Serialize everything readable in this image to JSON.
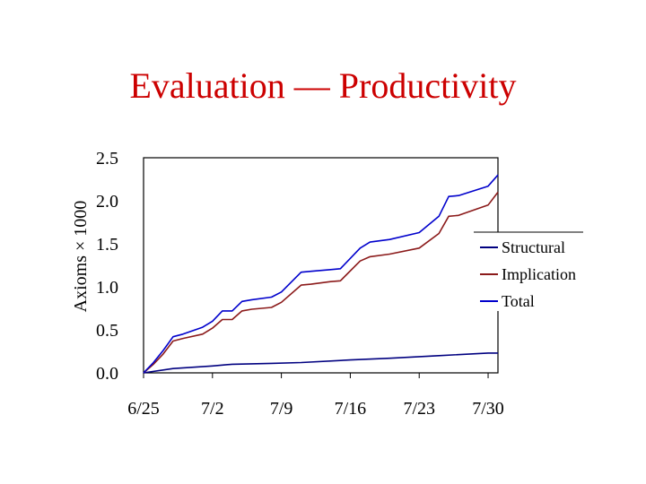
{
  "slide": {
    "title": "Evaluation — Productivity"
  },
  "chart_data": {
    "type": "line",
    "title": "",
    "xlabel": "",
    "ylabel": "Axioms × 1000",
    "ylim": [
      0,
      2.5
    ],
    "yticks": [
      "0.0",
      "0.5",
      "1.0",
      "1.5",
      "2.0",
      "2.5"
    ],
    "xticks": [
      "6/25",
      "7/2",
      "7/9",
      "7/16",
      "7/23",
      "7/30"
    ],
    "xlim": [
      "2002-06-25",
      "2002-07-31"
    ],
    "grid": false,
    "legend_position": "right",
    "series": [
      {
        "name": "Structural",
        "color": "#000080",
        "points": [
          [
            "2002-06-25",
            0.0
          ],
          [
            "2002-06-28",
            0.05
          ],
          [
            "2002-07-02",
            0.08
          ],
          [
            "2002-07-04",
            0.1
          ],
          [
            "2002-07-08",
            0.11
          ],
          [
            "2002-07-11",
            0.12
          ],
          [
            "2002-07-16",
            0.15
          ],
          [
            "2002-07-20",
            0.17
          ],
          [
            "2002-07-25",
            0.2
          ],
          [
            "2002-07-30",
            0.23
          ],
          [
            "2002-07-31",
            0.23
          ]
        ]
      },
      {
        "name": "Implication",
        "color": "#8b1a1a",
        "points": [
          [
            "2002-06-25",
            0.0
          ],
          [
            "2002-06-26",
            0.1
          ],
          [
            "2002-06-27",
            0.22
          ],
          [
            "2002-06-28",
            0.37
          ],
          [
            "2002-06-29",
            0.4
          ],
          [
            "2002-07-01",
            0.45
          ],
          [
            "2002-07-02",
            0.52
          ],
          [
            "2002-07-03",
            0.62
          ],
          [
            "2002-07-04",
            0.62
          ],
          [
            "2002-07-05",
            0.72
          ],
          [
            "2002-07-06",
            0.74
          ],
          [
            "2002-07-08",
            0.76
          ],
          [
            "2002-07-09",
            0.82
          ],
          [
            "2002-07-11",
            1.02
          ],
          [
            "2002-07-12",
            1.03
          ],
          [
            "2002-07-14",
            1.06
          ],
          [
            "2002-07-15",
            1.07
          ],
          [
            "2002-07-17",
            1.3
          ],
          [
            "2002-07-18",
            1.35
          ],
          [
            "2002-07-20",
            1.38
          ],
          [
            "2002-07-23",
            1.45
          ],
          [
            "2002-07-25",
            1.62
          ],
          [
            "2002-07-26",
            1.82
          ],
          [
            "2002-07-27",
            1.83
          ],
          [
            "2002-07-30",
            1.95
          ],
          [
            "2002-07-31",
            2.1
          ]
        ]
      },
      {
        "name": "Total",
        "color": "#0000cc",
        "points": [
          [
            "2002-06-25",
            0.0
          ],
          [
            "2002-06-26",
            0.12
          ],
          [
            "2002-06-27",
            0.26
          ],
          [
            "2002-06-28",
            0.42
          ],
          [
            "2002-06-29",
            0.45
          ],
          [
            "2002-07-01",
            0.53
          ],
          [
            "2002-07-02",
            0.6
          ],
          [
            "2002-07-03",
            0.72
          ],
          [
            "2002-07-04",
            0.72
          ],
          [
            "2002-07-05",
            0.83
          ],
          [
            "2002-07-06",
            0.85
          ],
          [
            "2002-07-08",
            0.88
          ],
          [
            "2002-07-09",
            0.94
          ],
          [
            "2002-07-11",
            1.17
          ],
          [
            "2002-07-12",
            1.18
          ],
          [
            "2002-07-14",
            1.2
          ],
          [
            "2002-07-15",
            1.21
          ],
          [
            "2002-07-17",
            1.45
          ],
          [
            "2002-07-18",
            1.52
          ],
          [
            "2002-07-20",
            1.55
          ],
          [
            "2002-07-23",
            1.63
          ],
          [
            "2002-07-25",
            1.82
          ],
          [
            "2002-07-26",
            2.05
          ],
          [
            "2002-07-27",
            2.06
          ],
          [
            "2002-07-30",
            2.17
          ],
          [
            "2002-07-31",
            2.3
          ]
        ]
      }
    ]
  }
}
